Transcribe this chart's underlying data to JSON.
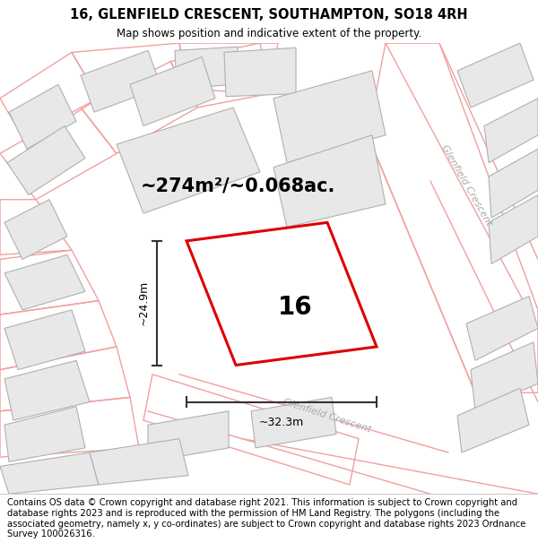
{
  "title_line1": "16, GLENFIELD CRESCENT, SOUTHAMPTON, SO18 4RH",
  "title_line2": "Map shows position and indicative extent of the property.",
  "area_text": "~274m²/~0.068ac.",
  "number_label": "16",
  "dim_width": "~32.3m",
  "dim_height": "~24.9m",
  "street_label": "Glenfield Crescent",
  "footer_text": "Contains OS data © Crown copyright and database right 2021. This information is subject to Crown copyright and database rights 2023 and is reproduced with the permission of HM Land Registry. The polygons (including the associated geometry, namely x, y co-ordinates) are subject to Crown copyright and database rights 2023 Ordnance Survey 100026316.",
  "bg_color": "#ffffff",
  "plot_fill": "#ffffff",
  "plot_border_color": "#dd0000",
  "building_fill": "#e8e8e8",
  "building_stroke": "#b0b0b0",
  "lot_stroke": "#f0a0a0",
  "road_label_color": "#aaaaaa",
  "title_fontsize": 10.5,
  "subtitle_fontsize": 8.5,
  "footer_fontsize": 7.2,
  "area_fontsize": 15,
  "number_fontsize": 20,
  "dim_fontsize": 9
}
